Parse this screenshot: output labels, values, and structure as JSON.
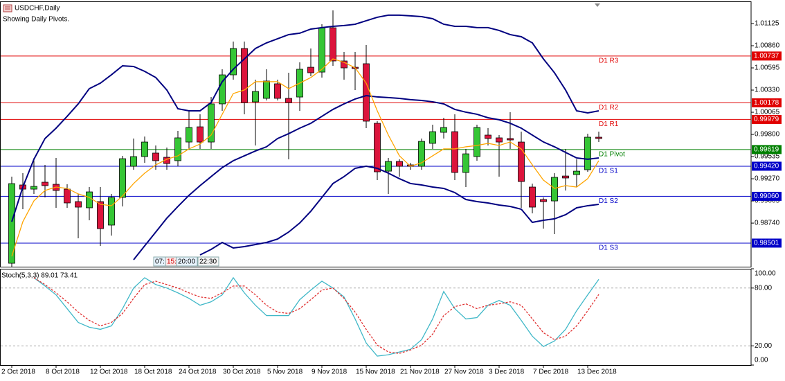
{
  "chart_data": [
    {
      "type": "candlestick",
      "title": "USDCHF,Daily",
      "subtitle": "Showing Daily Pivots.",
      "categories": [
        "2 Oct 2018",
        null,
        null,
        null,
        "8 Oct 2018",
        null,
        null,
        null,
        "12 Oct 2018",
        null,
        null,
        null,
        "18 Oct 2018",
        null,
        null,
        null,
        "24 Oct 2018",
        null,
        null,
        null,
        "30 Oct 2018",
        null,
        null,
        null,
        "5 Nov 2018",
        null,
        null,
        null,
        "9 Nov 2018",
        null,
        null,
        null,
        "15 Nov 2018",
        null,
        null,
        null,
        "21 Nov 2018",
        null,
        null,
        null,
        "27 Nov 2018",
        null,
        null,
        null,
        "3 Dec 2018",
        null,
        null,
        null,
        "7 Dec 2018",
        null,
        null,
        null,
        "13 Dec 2018",
        null
      ],
      "open": [
        0.9826,
        0.99196,
        0.99146,
        0.99229,
        0.99204,
        0.99146,
        0.98997,
        0.98923,
        0.98997,
        0.98716,
        0.99047,
        0.99419,
        0.99535,
        0.99577,
        0.99527,
        0.99486,
        0.99709,
        0.99891,
        0.99709,
        1.00165,
        1.00512,
        1.00827,
        1.00189,
        1.00231,
        1.00405,
        1.00231,
        1.00247,
        1.00603,
        1.00545,
        1.01075,
        1.00678,
        1.00603,
        1.00645,
        0.99933,
        0.99361,
        0.99477,
        0.99436,
        0.99419,
        0.99693,
        0.99825,
        0.99833,
        0.99345,
        0.99535,
        0.99792,
        0.99759,
        0.99751,
        0.99709,
        0.99171,
        0.99022,
        0.99005,
        0.99303,
        0.9932,
        0.99378,
        0.99767
      ],
      "high": [
        0.99295,
        0.99337,
        0.99519,
        0.99436,
        0.99519,
        0.99204,
        0.99088,
        0.99171,
        0.99171,
        0.99088,
        0.99544,
        0.99751,
        0.99775,
        0.99668,
        0.99643,
        0.99842,
        1.00082,
        1.0004,
        1.00247,
        1.00579,
        1.0091,
        1.0091,
        1.00454,
        1.00579,
        1.00454,
        1.00537,
        1.00661,
        1.00827,
        1.01117,
        1.01282,
        1.00786,
        1.00786,
        1.00868,
        0.99958,
        0.99519,
        0.99502,
        0.99461,
        0.99751,
        0.99916,
        0.99999,
        1.0004,
        0.99626,
        0.99916,
        0.99875,
        0.99792,
        1.00065,
        0.99833,
        0.99212,
        0.99047,
        0.99337,
        0.99626,
        0.99502,
        0.99809,
        0.99833
      ],
      "low": [
        0.98219,
        0.98906,
        0.99088,
        0.99047,
        0.98923,
        0.98923,
        0.98558,
        0.98774,
        0.98467,
        0.98591,
        0.98939,
        0.99378,
        0.99461,
        0.99378,
        0.99378,
        0.99419,
        0.99626,
        0.99626,
        0.99626,
        1.00082,
        1.00454,
        1.0004,
        0.99668,
        1.00206,
        1.00206,
        0.99502,
        1.00082,
        1.00496,
        1.00479,
        1.0062,
        1.00454,
        1.0033,
        0.99875,
        0.99254,
        0.99088,
        0.99295,
        0.99378,
        0.99378,
        0.99626,
        0.99751,
        0.99254,
        0.99171,
        0.99486,
        0.99668,
        0.99295,
        0.99626,
        0.98923,
        0.98856,
        0.98674,
        0.98608,
        0.9913,
        0.99171,
        0.99353,
        0.99709
      ],
      "close": [
        0.99212,
        0.99146,
        0.99179,
        0.99188,
        0.9913,
        0.98981,
        0.98931,
        0.99113,
        0.98674,
        0.99047,
        0.9951,
        0.99535,
        0.99709,
        0.99486,
        0.99452,
        0.99759,
        0.99883,
        0.99709,
        1.00165,
        1.00512,
        1.00827,
        1.00181,
        1.00314,
        1.00438,
        1.00231,
        1.00181,
        1.00579,
        1.00537,
        1.01075,
        1.00678,
        1.00595,
        1.00587,
        0.99958,
        0.99353,
        0.99477,
        0.99419,
        0.99419,
        0.99717,
        0.99833,
        0.99883,
        0.99345,
        0.99568,
        0.99883,
        0.99751,
        0.99709,
        0.99734,
        0.99237,
        0.98931,
        0.98997,
        0.99287,
        0.99279,
        0.99361,
        0.99767,
        0.99751
      ],
      "up_color": "#35c635",
      "down_color": "#dc143c",
      "series": [
        {
          "color": "#000080",
          "values": [
            0.98757,
            0.99171,
            0.99503,
            0.99751,
            0.99875,
            1.00016,
            1.00165,
            1.00347,
            1.00413,
            1.00513,
            1.0062,
            1.00612,
            1.00554,
            1.0048,
            1.00331,
            1.00107,
            1.00082,
            1.00082,
            1.00182,
            1.0043,
            1.00579,
            1.00703,
            1.00827,
            1.00894,
            1.00943,
            1.00993,
            1.0101,
            1.01059,
            1.01076,
            1.01092,
            1.01101,
            1.01117,
            1.01159,
            1.012,
            1.01225,
            1.01225,
            1.01217,
            1.01208,
            1.01183,
            1.01117,
            1.01092,
            1.01092,
            1.01076,
            1.01076,
            1.01043,
            1.00993,
            1.00968,
            1.00894,
            1.00703,
            1.00537,
            1.00331,
            1.00082,
            1.00057,
            1.00082
          ]
        },
        {
          "color": "#000080",
          "values": [
            null,
            null,
            null,
            null,
            null,
            null,
            null,
            null,
            null,
            null,
            null,
            0.98302,
            0.98468,
            0.98633,
            0.98799,
            0.98939,
            0.99072,
            0.99188,
            0.99296,
            0.99403,
            0.99486,
            0.99544,
            0.99602,
            0.99652,
            0.99751,
            0.99809,
            0.99875,
            0.99933,
            1.00016,
            1.00099,
            1.00165,
            1.00223,
            1.00264,
            1.00248,
            1.0024,
            1.00231,
            1.00215,
            1.00206,
            1.0019,
            1.00165,
            1.00099,
            1.00066,
            1.00041,
            0.99999,
            0.99975,
            0.99933,
            0.99875,
            0.99792,
            0.9971,
            0.99652,
            0.99585,
            0.99519,
            0.99503,
            0.99519
          ]
        },
        {
          "color": "#000080",
          "values": [
            null,
            null,
            null,
            null,
            null,
            null,
            null,
            null,
            null,
            null,
            null,
            null,
            null,
            null,
            null,
            null,
            null,
            0.9836,
            0.98426,
            0.98509,
            0.98443,
            0.98459,
            0.98484,
            0.98509,
            0.9855,
            0.98633,
            0.98741,
            0.98882,
            0.99047,
            0.99213,
            0.99296,
            0.99395,
            0.9942,
            0.99395,
            0.99337,
            0.99271,
            0.99213,
            0.99196,
            0.99171,
            0.99155,
            0.99105,
            0.99022,
            0.98997,
            0.98981,
            0.98956,
            0.98939,
            0.98906,
            0.98749,
            0.98774,
            0.98791,
            0.9884,
            0.98923,
            0.98948,
            0.98964
          ]
        },
        {
          "color": "#ffa500",
          "values": [
            0.98343,
            0.98757,
            0.99006,
            0.9913,
            0.99171,
            0.99155,
            0.99089,
            0.99047,
            0.98964,
            0.98948,
            0.99064,
            0.99213,
            0.99337,
            0.99436,
            0.99503,
            0.99544,
            0.99627,
            0.99685,
            0.99792,
            1.00041,
            1.00289,
            1.00331,
            1.0043,
            1.0043,
            1.0043,
            1.00347,
            1.00413,
            1.0048,
            1.00579,
            1.00703,
            1.00662,
            1.00596,
            1.00413,
            1.00082,
            0.99792,
            0.99544,
            0.9942,
            0.99461,
            0.99544,
            0.99627,
            0.99627,
            0.99652,
            0.99668,
            0.99693,
            0.99668,
            0.9971,
            0.99627,
            0.99436,
            0.99254,
            0.99155,
            0.99188,
            0.99171,
            0.99271,
            0.99486
          ]
        }
      ],
      "levels": {
        "names": [
          "D1 R3",
          "D1 R2",
          "D1 R1",
          "D1 Pivot",
          "D1 S1",
          "D1 S2",
          "D1 S3"
        ],
        "values": [
          1.00737,
          1.00178,
          0.99979,
          0.99619,
          0.9942,
          0.9906,
          0.98501
        ],
        "value_labels": [
          "1.00737",
          "1.00178",
          "0.99979",
          "0.99619",
          "0.99420",
          "0.99060",
          "0.98501"
        ],
        "colors": [
          "#e00000",
          "#e00000",
          "#e00000",
          "#008000",
          "#0000c8",
          "#0000c8",
          "#0000c8"
        ]
      },
      "ylim": [
        0.98219,
        1.0139
      ],
      "yticks": [
        1.01125,
        {
          "value": 1.0086,
          "label": "1.00860"
        },
        1.00595,
        {
          "value": 1.0033,
          "label": "1.00330"
        },
        1.00065,
        {
          "value": 0.998,
          "label": "0.99800"
        },
        0.99535,
        {
          "value": 0.9927,
          "label": "0.99270"
        },
        0.99005,
        {
          "value": 0.9874,
          "label": "0.98740"
        }
      ],
      "annotations": [
        "07:",
        "15:",
        "20:00",
        "22:30"
      ]
    },
    {
      "type": "line",
      "title": "Stoch(5,3,3) 89.01 73.41",
      "series": [
        {
          "color": "#40b8c8",
          "values": [
            null,
            null,
            90.7,
            82.1,
            72.9,
            58.6,
            44.3,
            39.3,
            37.1,
            40.7,
            58.6,
            80.0,
            90.7,
            83.6,
            80.0,
            75.0,
            69.3,
            62.1,
            65.7,
            72.9,
            90.7,
            75.0,
            62.1,
            51.4,
            51.4,
            51.4,
            67.9,
            77.9,
            87.1,
            80.0,
            70.7,
            47.9,
            22.9,
            9.3,
            10.7,
            13.6,
            16.4,
            26.4,
            47.9,
            76.4,
            58.6,
            47.9,
            49.3,
            62.1,
            67.1,
            62.1,
            46.4,
            30.0,
            19.3,
            25.0,
            37.1,
            56.4,
            72.9,
            89.01
          ]
        },
        {
          "color": "#e03030",
          "dashed": true,
          "values": [
            null,
            null,
            90.7,
            83.6,
            75.0,
            65.7,
            55.0,
            46.4,
            40.7,
            44.3,
            53.6,
            69.3,
            83.6,
            87.1,
            83.6,
            80.0,
            75.0,
            70.7,
            69.3,
            75.0,
            82.1,
            82.1,
            72.9,
            62.1,
            55.0,
            53.6,
            58.6,
            67.9,
            77.9,
            80.0,
            69.3,
            55.0,
            37.1,
            20.7,
            13.6,
            12.1,
            15.7,
            20.7,
            32.1,
            51.4,
            60.7,
            63.6,
            58.6,
            62.1,
            63.6,
            65.7,
            62.1,
            47.9,
            33.6,
            26.4,
            30.0,
            40.7,
            56.4,
            73.41
          ]
        }
      ],
      "ylim": [
        0,
        100
      ],
      "yticks": [
        {
          "value": 100,
          "label": "100.00"
        },
        {
          "value": 80,
          "label": "80.00"
        },
        {
          "value": 20,
          "label": "20.00"
        },
        {
          "value": 0,
          "label": "0.00"
        }
      ]
    }
  ]
}
